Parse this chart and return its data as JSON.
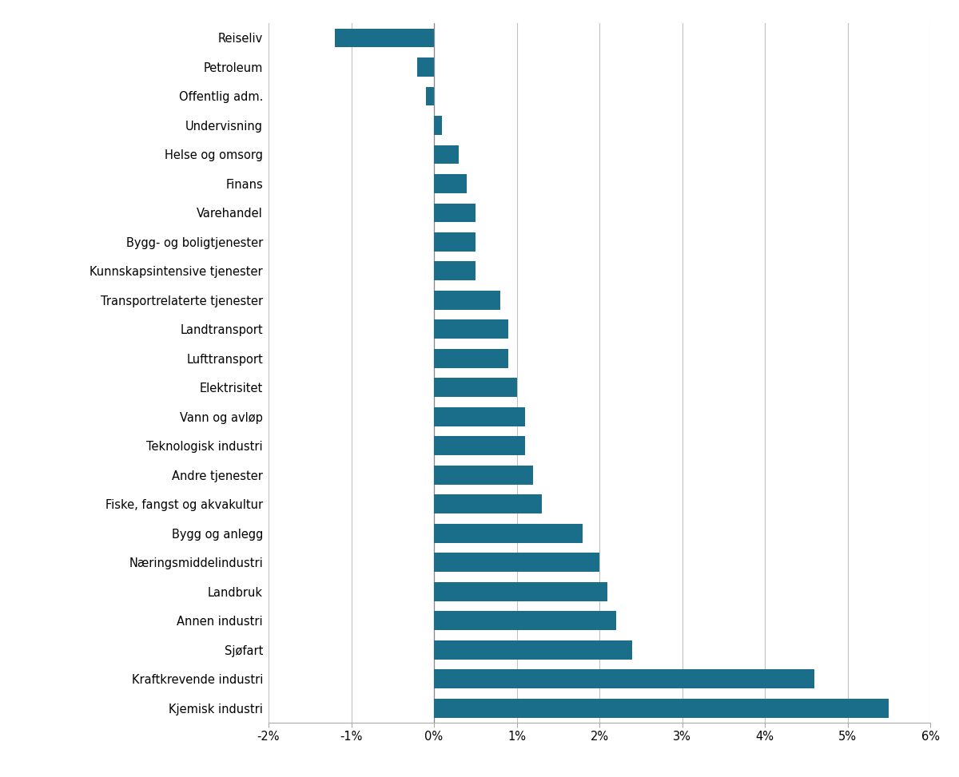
{
  "categories": [
    "Kjemisk industri",
    "Kraftkrevende industri",
    "Sjøfart",
    "Annen industri",
    "Landbruk",
    "Næringsmiddelindustri",
    "Bygg og anlegg",
    "Fiske, fangst og akvakultur",
    "Andre tjenester",
    "Teknologisk industri",
    "Vann og avløp",
    "Elektrisitet",
    "Lufttransport",
    "Landtransport",
    "Transportrelaterte tjenester",
    "Kunnskapsintensive tjenester",
    "Bygg- og boligtjenester",
    "Varehandel",
    "Finans",
    "Helse og omsorg",
    "Undervisning",
    "Offentlig adm.",
    "Petroleum",
    "Reiseliv"
  ],
  "values": [
    0.055,
    0.046,
    0.024,
    0.022,
    0.021,
    0.02,
    0.018,
    0.013,
    0.012,
    0.011,
    0.011,
    0.01,
    0.009,
    0.009,
    0.008,
    0.005,
    0.005,
    0.005,
    0.004,
    0.003,
    0.001,
    -0.001,
    -0.002,
    -0.012
  ],
  "bar_color": "#1a6e8a",
  "xlim": [
    -0.02,
    0.06
  ],
  "xticks": [
    -0.02,
    -0.01,
    0.0,
    0.01,
    0.02,
    0.03,
    0.04,
    0.05,
    0.06
  ],
  "xtick_labels": [
    "-2%",
    "-1%",
    "0%",
    "1%",
    "2%",
    "3%",
    "4%",
    "5%",
    "6%"
  ],
  "background_color": "#ffffff",
  "bar_height": 0.65,
  "grid_color": "#c0c0c0",
  "spine_color": "#aaaaaa",
  "label_fontsize": 10.5,
  "tick_fontsize": 10.5
}
